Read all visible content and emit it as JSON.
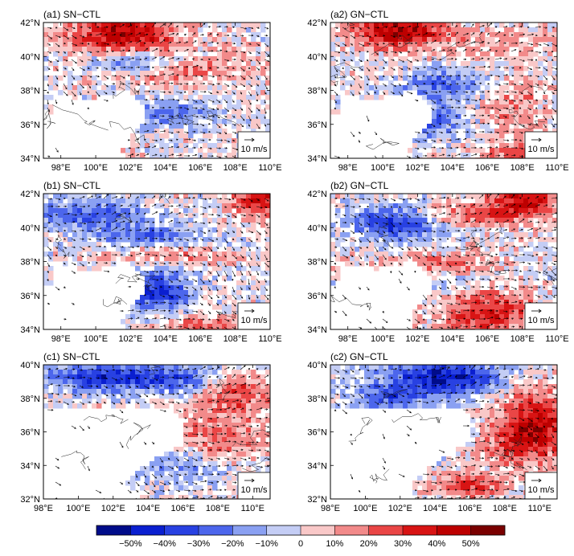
{
  "colorbar": {
    "labels": [
      "−50%",
      "−40%",
      "−30%",
      "−20%",
      "−10%",
      "0",
      "10%",
      "20%",
      "30%",
      "40%",
      "50%"
    ],
    "colors": [
      "#000c8a",
      "#0a1fd0",
      "#2841e2",
      "#4c66ec",
      "#8aa0f2",
      "#c4cdf5",
      "#f9c8c8",
      "#f28a8a",
      "#ea4646",
      "#d81414",
      "#bd0000",
      "#7a0000"
    ]
  },
  "chart_data": [
    {
      "id": "a1",
      "type": "heatmap",
      "title": "(a1)  SN−CTL",
      "xlim": [
        97,
        110
      ],
      "ylim": [
        34,
        42
      ],
      "xticks": [
        "98°E",
        "100°E",
        "102°E",
        "104°E",
        "106°E",
        "108°E",
        "110°E"
      ],
      "yticks": [
        "34°N",
        "36°N",
        "38°N",
        "40°N",
        "42°N"
      ],
      "vector_ref": "10 m/s",
      "seed": 11
    },
    {
      "id": "a2",
      "type": "heatmap",
      "title": "(a2)  GN−CTL",
      "xlim": [
        97,
        110
      ],
      "ylim": [
        34,
        42
      ],
      "xticks": [
        "98°E",
        "100°E",
        "102°E",
        "104°E",
        "106°E",
        "108°E",
        "110°E"
      ],
      "yticks": [
        "34°N",
        "36°N",
        "38°N",
        "40°N",
        "42°N"
      ],
      "vector_ref": "10 m/s",
      "seed": 23
    },
    {
      "id": "b1",
      "type": "heatmap",
      "title": "(b1)  SN−CTL",
      "xlim": [
        97,
        110
      ],
      "ylim": [
        34,
        42
      ],
      "xticks": [
        "98°E",
        "100°E",
        "102°E",
        "104°E",
        "106°E",
        "108°E",
        "110°E"
      ],
      "yticks": [
        "34°N",
        "36°N",
        "38°N",
        "40°N",
        "42°N"
      ],
      "vector_ref": "10 m/s",
      "seed": 37
    },
    {
      "id": "b2",
      "type": "heatmap",
      "title": "(b2)  GN−CTL",
      "xlim": [
        97,
        110
      ],
      "ylim": [
        34,
        42
      ],
      "xticks": [
        "98°E",
        "100°E",
        "102°E",
        "104°E",
        "106°E",
        "108°E",
        "110°E"
      ],
      "yticks": [
        "34°N",
        "36°N",
        "38°N",
        "40°N",
        "42°N"
      ],
      "vector_ref": "10 m/s",
      "seed": 41
    },
    {
      "id": "c1",
      "type": "heatmap",
      "title": "(c1)  SN−CTL",
      "xlim": [
        98,
        111
      ],
      "ylim": [
        32,
        40
      ],
      "xticks": [
        "98°E",
        "100°E",
        "102°E",
        "104°E",
        "106°E",
        "108°E",
        "110°E"
      ],
      "yticks": [
        "32°N",
        "34°N",
        "36°N",
        "38°N",
        "40°N"
      ],
      "vector_ref": "10 m/s",
      "seed": 53
    },
    {
      "id": "c2",
      "type": "heatmap",
      "title": "(c2)  GN−CTL",
      "xlim": [
        98,
        111
      ],
      "ylim": [
        32,
        40
      ],
      "xticks": [
        "98°E",
        "100°E",
        "102°E",
        "104°E",
        "106°E",
        "108°E",
        "110°E"
      ],
      "yticks": [
        "32°N",
        "34°N",
        "36°N",
        "38°N",
        "40°N"
      ],
      "vector_ref": "10 m/s",
      "seed": 67
    }
  ]
}
